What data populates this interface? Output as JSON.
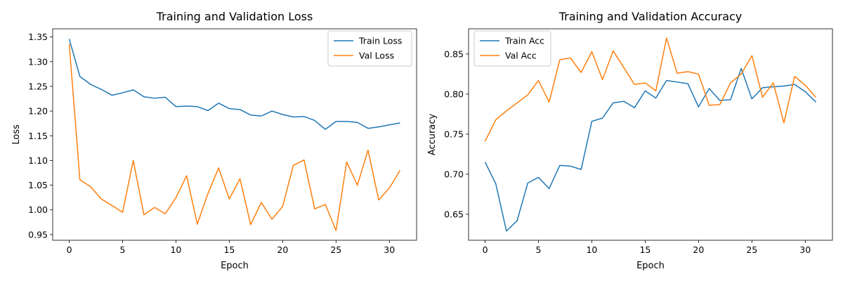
{
  "chart_data": [
    {
      "type": "line",
      "title": "Training and Validation Loss",
      "xlabel": "Epoch",
      "ylabel": "Loss",
      "xlim": [
        -1.55,
        32.55
      ],
      "ylim": [
        0.9385,
        1.3665
      ],
      "xticks": [
        0,
        5,
        10,
        15,
        20,
        25,
        30
      ],
      "yticks": [
        0.95,
        1.0,
        1.05,
        1.1,
        1.15,
        1.2,
        1.25,
        1.3,
        1.35
      ],
      "ytick_labels": [
        "0.95",
        "1.00",
        "1.05",
        "1.10",
        "1.15",
        "1.20",
        "1.25",
        "1.30",
        "1.35"
      ],
      "grid": false,
      "legend_position": "upper right",
      "series": [
        {
          "name": "Train Loss",
          "color": "#1f77b4",
          "x": [
            0,
            1,
            2,
            3,
            4,
            5,
            6,
            7,
            8,
            9,
            10,
            11,
            12,
            13,
            14,
            15,
            16,
            17,
            18,
            19,
            20,
            21,
            22,
            23,
            24,
            25,
            26,
            27,
            28,
            29,
            30,
            31
          ],
          "y": [
            1.346,
            1.27,
            1.254,
            1.244,
            1.232,
            1.237,
            1.243,
            1.229,
            1.226,
            1.228,
            1.209,
            1.21,
            1.209,
            1.201,
            1.216,
            1.205,
            1.203,
            1.192,
            1.19,
            1.2,
            1.193,
            1.188,
            1.189,
            1.181,
            1.163,
            1.179,
            1.179,
            1.177,
            1.165,
            1.168,
            1.172,
            1.176
          ]
        },
        {
          "name": "Val Loss",
          "color": "#ff7f0e",
          "x": [
            0,
            1,
            2,
            3,
            4,
            5,
            6,
            7,
            8,
            9,
            10,
            11,
            12,
            13,
            14,
            15,
            16,
            17,
            18,
            19,
            20,
            21,
            22,
            23,
            24,
            25,
            26,
            27,
            28,
            29,
            30,
            31
          ],
          "y": [
            1.336,
            1.061,
            1.047,
            1.022,
            1.009,
            0.995,
            1.1,
            0.99,
            1.005,
            0.992,
            1.025,
            1.069,
            0.971,
            1.033,
            1.085,
            1.022,
            1.063,
            0.97,
            1.015,
            0.981,
            1.007,
            1.09,
            1.101,
            1.002,
            1.011,
            0.958,
            1.097,
            1.05,
            1.121,
            1.02,
            1.044,
            1.08
          ]
        }
      ]
    },
    {
      "type": "line",
      "title": "Training and Validation Accuracy",
      "xlabel": "Epoch",
      "ylabel": "Accuracy",
      "xlim": [
        -1.55,
        32.55
      ],
      "ylim": [
        0.6175,
        0.8815
      ],
      "xticks": [
        0,
        5,
        10,
        15,
        20,
        25,
        30
      ],
      "yticks": [
        0.65,
        0.7,
        0.75,
        0.8,
        0.85
      ],
      "ytick_labels": [
        "0.65",
        "0.70",
        "0.75",
        "0.80",
        "0.85"
      ],
      "grid": false,
      "legend_position": "upper left",
      "series": [
        {
          "name": "Train Acc",
          "color": "#1f77b4",
          "x": [
            0,
            1,
            2,
            3,
            4,
            5,
            6,
            7,
            8,
            9,
            10,
            11,
            12,
            13,
            14,
            15,
            16,
            17,
            18,
            19,
            20,
            21,
            22,
            23,
            24,
            25,
            26,
            27,
            28,
            29,
            30,
            31
          ],
          "y": [
            0.715,
            0.688,
            0.629,
            0.642,
            0.689,
            0.696,
            0.682,
            0.711,
            0.71,
            0.706,
            0.766,
            0.77,
            0.789,
            0.791,
            0.783,
            0.804,
            0.795,
            0.817,
            0.815,
            0.813,
            0.784,
            0.807,
            0.792,
            0.793,
            0.832,
            0.794,
            0.808,
            0.809,
            0.81,
            0.812,
            0.803,
            0.79
          ]
        },
        {
          "name": "Val Acc",
          "color": "#ff7f0e",
          "x": [
            0,
            1,
            2,
            3,
            4,
            5,
            6,
            7,
            8,
            9,
            10,
            11,
            12,
            13,
            14,
            15,
            16,
            17,
            18,
            19,
            20,
            21,
            22,
            23,
            24,
            25,
            26,
            27,
            28,
            29,
            30,
            31
          ],
          "y": [
            0.741,
            0.768,
            0.779,
            0.789,
            0.799,
            0.817,
            0.79,
            0.843,
            0.845,
            0.827,
            0.853,
            0.818,
            0.854,
            0.833,
            0.812,
            0.814,
            0.804,
            0.87,
            0.826,
            0.828,
            0.825,
            0.786,
            0.787,
            0.814,
            0.825,
            0.848,
            0.796,
            0.814,
            0.764,
            0.822,
            0.811,
            0.796
          ]
        }
      ]
    }
  ]
}
